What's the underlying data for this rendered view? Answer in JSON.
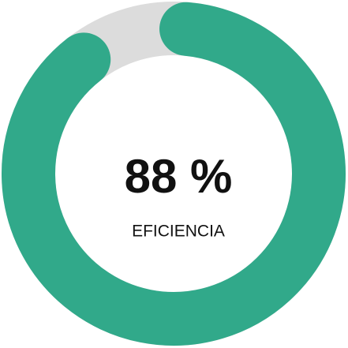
{
  "chart_data": {
    "type": "gauge",
    "values": [
      88
    ],
    "value_labels": [
      "88 %"
    ],
    "label": "EFICIENCIA",
    "ylim": [
      0,
      100
    ],
    "color": "#31a98a",
    "track_color": "#dcdcdc"
  }
}
